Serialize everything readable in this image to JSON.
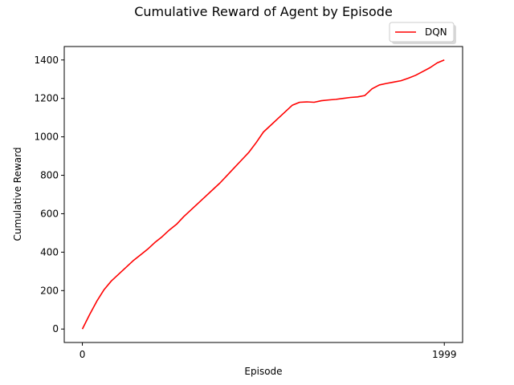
{
  "chart_data": {
    "type": "line",
    "title": "Cumulative Reward of Agent by Episode",
    "xlabel": "Episode",
    "ylabel": "Cumulative Reward",
    "xlim": [
      -100,
      2100
    ],
    "ylim": [
      -70,
      1470
    ],
    "xticks": [
      0,
      1999
    ],
    "yticks": [
      0,
      200,
      400,
      600,
      800,
      1000,
      1200,
      1400
    ],
    "grid": false,
    "legend_position": "upper-right-outside",
    "series": [
      {
        "name": "DQN",
        "color": "#ff0000",
        "x": [
          0,
          40,
          80,
          120,
          160,
          200,
          240,
          280,
          320,
          360,
          400,
          440,
          480,
          520,
          560,
          600,
          640,
          680,
          720,
          760,
          800,
          840,
          880,
          920,
          960,
          1000,
          1040,
          1080,
          1120,
          1160,
          1200,
          1240,
          1280,
          1320,
          1360,
          1400,
          1440,
          1480,
          1520,
          1560,
          1600,
          1640,
          1680,
          1720,
          1760,
          1800,
          1840,
          1880,
          1920,
          1960,
          1999
        ],
        "y": [
          0,
          75,
          145,
          205,
          250,
          285,
          320,
          355,
          385,
          415,
          450,
          480,
          515,
          545,
          585,
          620,
          655,
          690,
          725,
          760,
          800,
          840,
          880,
          920,
          970,
          1025,
          1060,
          1095,
          1130,
          1165,
          1180,
          1182,
          1180,
          1188,
          1192,
          1195,
          1200,
          1205,
          1208,
          1215,
          1250,
          1270,
          1278,
          1285,
          1292,
          1305,
          1320,
          1340,
          1360,
          1385,
          1400
        ]
      }
    ]
  }
}
